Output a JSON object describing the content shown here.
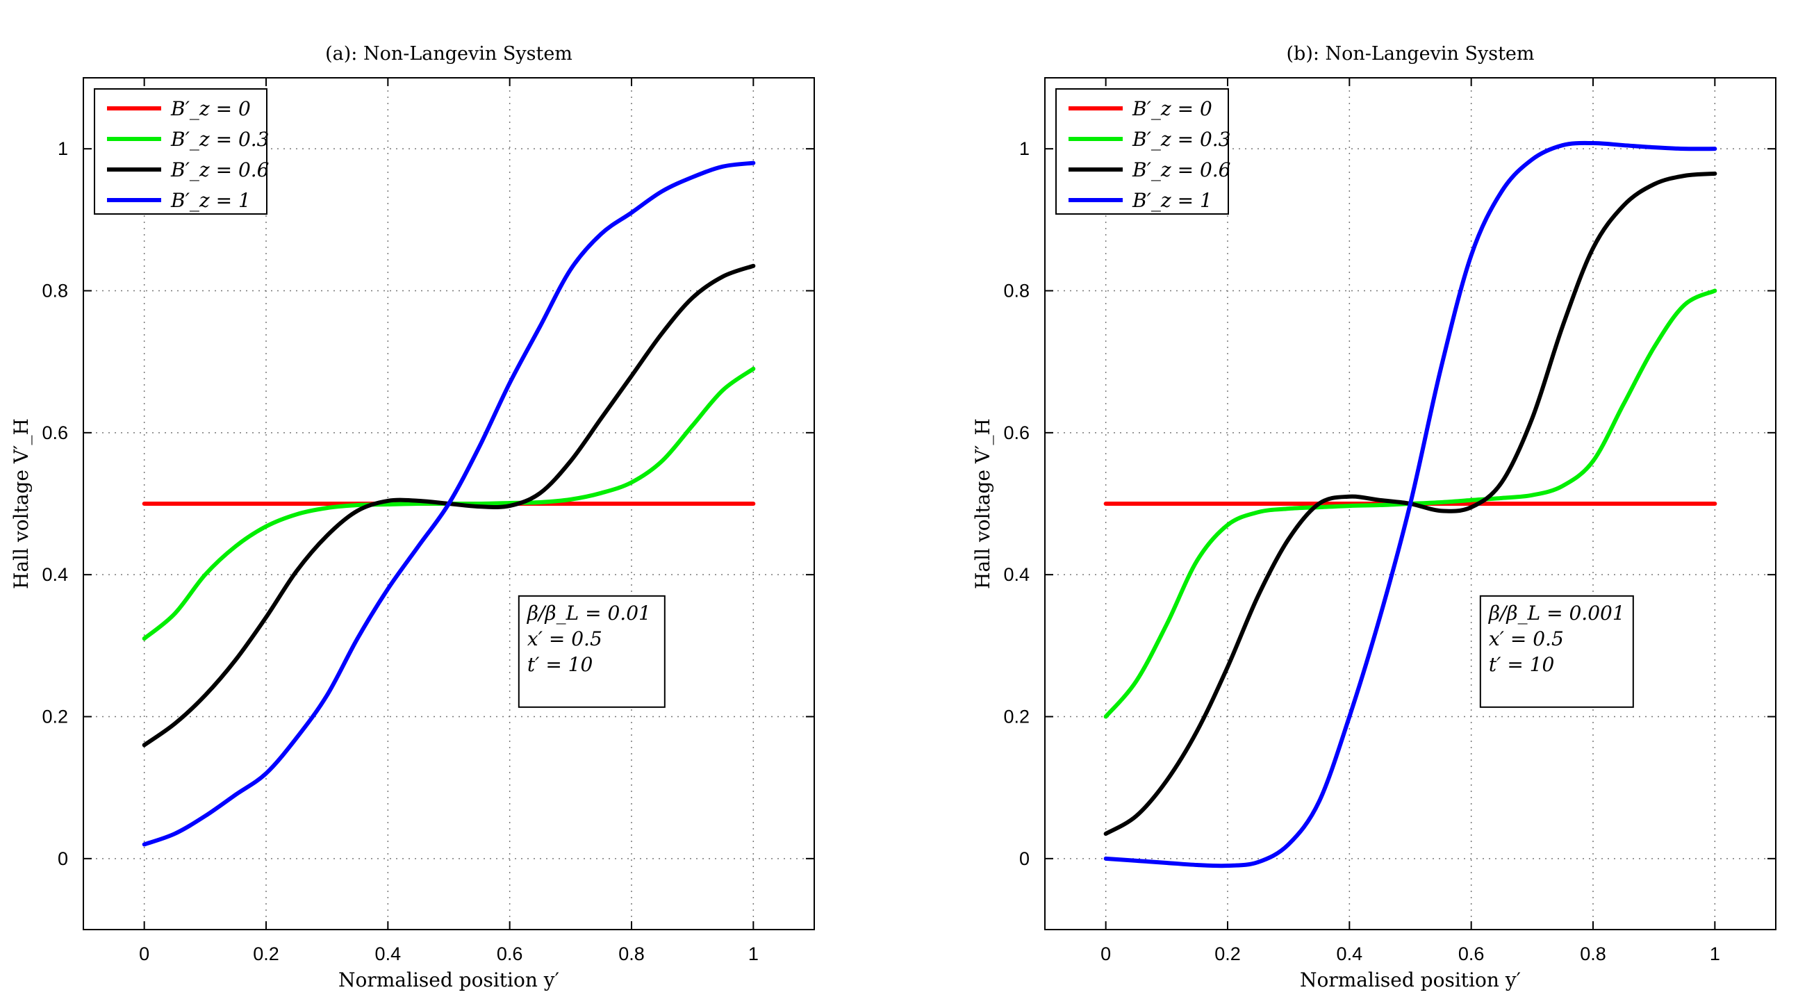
{
  "chart_data": [
    {
      "type": "line",
      "title": "(a):  Non-Langevin System",
      "xlabel": "Normalised position y′",
      "ylabel": "Hall voltage V′_H",
      "xlim": [
        -0.1,
        1.1
      ],
      "ylim": [
        -0.1,
        1.1
      ],
      "xticks": [
        "0",
        "0.2",
        "0.4",
        "0.6",
        "0.8",
        "1"
      ],
      "yticks": [
        "0",
        "0.2",
        "0.4",
        "0.6",
        "0.8",
        "1"
      ],
      "grid": true,
      "legend_position": "top-left",
      "annotation": [
        "β/β_L = 0.01",
        "x′ = 0.5",
        "t′ = 10"
      ],
      "x": [
        0,
        0.05,
        0.1,
        0.15,
        0.2,
        0.25,
        0.3,
        0.35,
        0.4,
        0.45,
        0.5,
        0.55,
        0.6,
        0.65,
        0.7,
        0.75,
        0.8,
        0.85,
        0.9,
        0.95,
        1.0
      ],
      "series": [
        {
          "name": "B′_z = 0",
          "color": "#ff0000",
          "values": [
            0.5,
            0.5,
            0.5,
            0.5,
            0.5,
            0.5,
            0.5,
            0.5,
            0.5,
            0.5,
            0.5,
            0.5,
            0.5,
            0.5,
            0.5,
            0.5,
            0.5,
            0.5,
            0.5,
            0.5,
            0.5
          ]
        },
        {
          "name": "B′_z = 0.3",
          "color": "#00ee00",
          "values": [
            0.31,
            0.345,
            0.4,
            0.44,
            0.468,
            0.485,
            0.494,
            0.498,
            0.499,
            0.5,
            0.5,
            0.5,
            0.501,
            0.502,
            0.506,
            0.515,
            0.53,
            0.56,
            0.61,
            0.66,
            0.69
          ]
        },
        {
          "name": "B′_z = 0.6",
          "color": "#000000",
          "values": [
            0.16,
            0.19,
            0.23,
            0.28,
            0.34,
            0.405,
            0.455,
            0.49,
            0.504,
            0.504,
            0.5,
            0.496,
            0.497,
            0.515,
            0.56,
            0.62,
            0.68,
            0.74,
            0.79,
            0.82,
            0.835
          ]
        },
        {
          "name": "B′_z = 1",
          "color": "#0000ff",
          "values": [
            0.02,
            0.035,
            0.06,
            0.09,
            0.12,
            0.17,
            0.23,
            0.31,
            0.38,
            0.44,
            0.5,
            0.58,
            0.67,
            0.75,
            0.83,
            0.88,
            0.91,
            0.94,
            0.96,
            0.975,
            0.98
          ]
        }
      ]
    },
    {
      "type": "line",
      "title": "(b):  Non-Langevin System",
      "xlabel": "Normalised position y′",
      "ylabel": "Hall voltage V′_H",
      "xlim": [
        -0.1,
        1.1
      ],
      "ylim": [
        -0.1,
        1.1
      ],
      "xticks": [
        "0",
        "0.2",
        "0.4",
        "0.6",
        "0.8",
        "1"
      ],
      "yticks": [
        "0",
        "0.2",
        "0.4",
        "0.6",
        "0.8",
        "1"
      ],
      "grid": true,
      "legend_position": "top-left",
      "annotation": [
        "β/β_L = 0.001",
        "x′ = 0.5",
        "t′ = 10"
      ],
      "x": [
        0,
        0.05,
        0.1,
        0.15,
        0.2,
        0.25,
        0.3,
        0.35,
        0.4,
        0.45,
        0.5,
        0.55,
        0.6,
        0.65,
        0.7,
        0.75,
        0.8,
        0.85,
        0.9,
        0.95,
        1.0
      ],
      "series": [
        {
          "name": "B′_z = 0",
          "color": "#ff0000",
          "values": [
            0.5,
            0.5,
            0.5,
            0.5,
            0.5,
            0.5,
            0.5,
            0.5,
            0.5,
            0.5,
            0.5,
            0.5,
            0.5,
            0.5,
            0.5,
            0.5,
            0.5,
            0.5,
            0.5,
            0.5,
            0.5
          ]
        },
        {
          "name": "B′_z = 0.3",
          "color": "#00ee00",
          "values": [
            0.2,
            0.25,
            0.33,
            0.42,
            0.47,
            0.488,
            0.493,
            0.495,
            0.497,
            0.498,
            0.5,
            0.502,
            0.505,
            0.508,
            0.512,
            0.525,
            0.56,
            0.64,
            0.72,
            0.78,
            0.8
          ]
        },
        {
          "name": "B′_z = 0.6",
          "color": "#000000",
          "values": [
            0.035,
            0.06,
            0.11,
            0.18,
            0.27,
            0.37,
            0.45,
            0.5,
            0.51,
            0.505,
            0.5,
            0.49,
            0.495,
            0.53,
            0.62,
            0.75,
            0.86,
            0.92,
            0.95,
            0.962,
            0.965
          ]
        },
        {
          "name": "B′_z = 1",
          "color": "#0000ff",
          "values": [
            0.0,
            -0.003,
            -0.006,
            -0.009,
            -0.01,
            -0.005,
            0.02,
            0.08,
            0.2,
            0.34,
            0.5,
            0.69,
            0.85,
            0.94,
            0.985,
            1.005,
            1.008,
            1.005,
            1.002,
            1.0,
            1.0
          ]
        }
      ]
    }
  ]
}
